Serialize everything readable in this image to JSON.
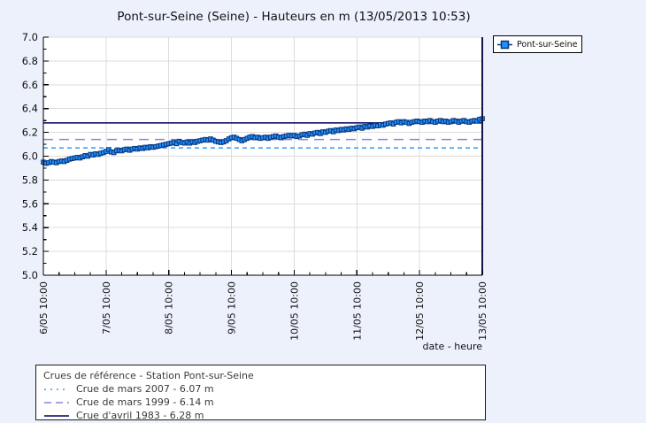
{
  "page": {
    "background": "#EDF1FB"
  },
  "title": "Pont-sur-Seine (Seine) - Hauteurs en m (13/05/2013 10:53)",
  "series_legend": {
    "label": "Pont-sur-Seine"
  },
  "x_axis_label": "date - heure",
  "reference_legend": {
    "title": "Crues de référence - Station Pont-sur-Seine"
  },
  "chart_data": {
    "type": "line",
    "title": "Pont-sur-Seine (Seine) - Hauteurs en m (13/05/2013 10:53)",
    "ylabel": "Hauteurs en m",
    "xlabel": "date - heure",
    "ylim": [
      5.0,
      7.0
    ],
    "y_tick_step": 0.2,
    "y_minor_step": 0.1,
    "x_tick_labels": [
      "6/05 10:00",
      "7/05 10:00",
      "8/05 10:00",
      "9/05 10:00",
      "10/05 10:00",
      "11/05 10:00",
      "12/05 10:00",
      "13/05 10:00"
    ],
    "x_hours_total": 168,
    "x_minor_step_hours": 6,
    "grid": true,
    "legend_position": "top-right",
    "colors": {
      "plot_bg": "#FFFFFF",
      "grid": "#DCDCDC",
      "spine": "#000000",
      "right_spine": "#13134A",
      "marker_fill": "#1E90FF",
      "marker_stroke": "#0A3578",
      "series_line": "#0A3578"
    },
    "series": [
      {
        "name": "Pont-sur-Seine",
        "marker": "square",
        "start": "6/05 10:00",
        "step_hours": 1,
        "values": [
          5.95,
          5.94,
          5.945,
          5.955,
          5.95,
          5.945,
          5.955,
          5.96,
          5.955,
          5.965,
          5.975,
          5.98,
          5.985,
          5.99,
          5.985,
          5.995,
          6.005,
          6.0,
          6.015,
          6.01,
          6.02,
          6.015,
          6.025,
          6.03,
          6.04,
          6.055,
          6.035,
          6.03,
          6.045,
          6.05,
          6.045,
          6.055,
          6.06,
          6.05,
          6.06,
          6.065,
          6.06,
          6.07,
          6.065,
          6.075,
          6.07,
          6.08,
          6.075,
          6.08,
          6.085,
          6.09,
          6.095,
          6.1,
          6.105,
          6.11,
          6.115,
          6.105,
          6.125,
          6.115,
          6.11,
          6.12,
          6.11,
          6.12,
          6.115,
          6.125,
          6.13,
          6.135,
          6.14,
          6.135,
          6.145,
          6.135,
          6.125,
          6.12,
          6.115,
          6.12,
          6.13,
          6.145,
          6.155,
          6.16,
          6.15,
          6.14,
          6.13,
          6.14,
          6.15,
          6.16,
          6.165,
          6.155,
          6.16,
          6.15,
          6.155,
          6.16,
          6.15,
          6.16,
          6.165,
          6.17,
          6.16,
          6.155,
          6.165,
          6.17,
          6.175,
          6.17,
          6.175,
          6.165,
          6.17,
          6.18,
          6.185,
          6.175,
          6.19,
          6.185,
          6.195,
          6.2,
          6.19,
          6.205,
          6.2,
          6.21,
          6.215,
          6.205,
          6.22,
          6.215,
          6.225,
          6.22,
          6.23,
          6.225,
          6.235,
          6.23,
          6.24,
          6.245,
          6.235,
          6.25,
          6.245,
          6.255,
          6.25,
          6.26,
          6.255,
          6.265,
          6.26,
          6.27,
          6.275,
          6.28,
          6.27,
          6.285,
          6.29,
          6.28,
          6.29,
          6.285,
          6.275,
          6.285,
          6.29,
          6.295,
          6.29,
          6.285,
          6.295,
          6.29,
          6.3,
          6.29,
          6.285,
          6.295,
          6.3,
          6.29,
          6.295,
          6.285,
          6.29,
          6.3,
          6.295,
          6.285,
          6.295,
          6.3,
          6.29,
          6.285,
          6.295,
          6.3,
          6.295,
          6.31,
          6.315
        ]
      }
    ],
    "reference_lines": [
      {
        "label": "Crue de mars 2007 - 6.07 m",
        "value": 6.07,
        "color": "#2E9BFF",
        "style": "dotted"
      },
      {
        "label": "Crue de mars 1999 - 6.14 m",
        "value": 6.14,
        "color": "#8585D6",
        "style": "dashed"
      },
      {
        "label": "Crue d'avril 1983 - 6.28 m",
        "value": 6.28,
        "color": "#000060",
        "style": "solid"
      }
    ]
  }
}
